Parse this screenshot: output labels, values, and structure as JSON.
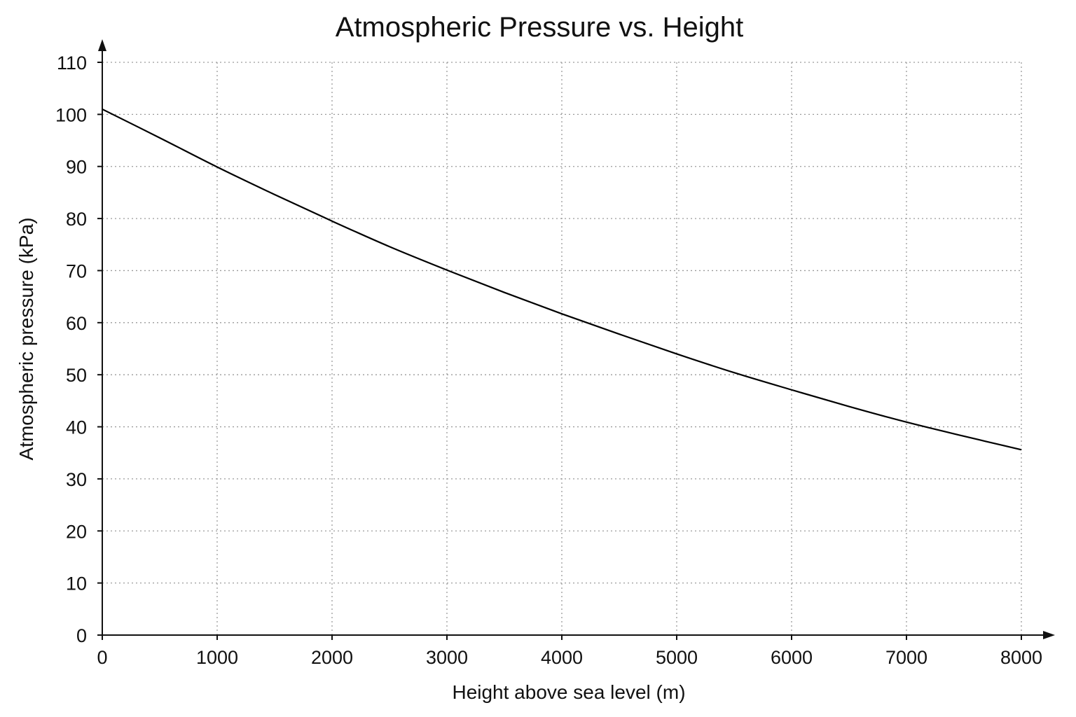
{
  "chart_data": {
    "type": "line",
    "title": "Atmospheric Pressure vs. Height",
    "xlabel": "Height above sea level (m)",
    "ylabel": "Atmospheric pressure (kPa)",
    "xlim": [
      0,
      8000
    ],
    "ylim": [
      0,
      110
    ],
    "x_ticks": [
      0,
      1000,
      2000,
      3000,
      4000,
      5000,
      6000,
      7000,
      8000
    ],
    "y_ticks": [
      0,
      10,
      20,
      30,
      40,
      50,
      60,
      70,
      80,
      90,
      100,
      110
    ],
    "x_tick_labels": [
      "0",
      "1000",
      "2000",
      "3000",
      "4000",
      "5000",
      "6000",
      "7000",
      "8000"
    ],
    "y_tick_labels": [
      "0",
      "10",
      "20",
      "30",
      "40",
      "50",
      "60",
      "70",
      "80",
      "90",
      "100",
      "110"
    ],
    "grid": true,
    "series": [
      {
        "x": [
          0,
          500,
          1000,
          1500,
          2000,
          2500,
          3000,
          3500,
          4000,
          4500,
          5000,
          5500,
          6000,
          6500,
          7000,
          7500,
          8000
        ],
        "values": [
          101,
          95.5,
          89.9,
          84.6,
          79.5,
          74.6,
          70.1,
          65.8,
          61.7,
          57.8,
          54.0,
          50.4,
          47.1,
          43.9,
          40.9,
          38.2,
          35.6
        ]
      }
    ],
    "colors": {
      "line": "#000000",
      "grid": "#9a9a9a",
      "axis": "#111111"
    }
  }
}
